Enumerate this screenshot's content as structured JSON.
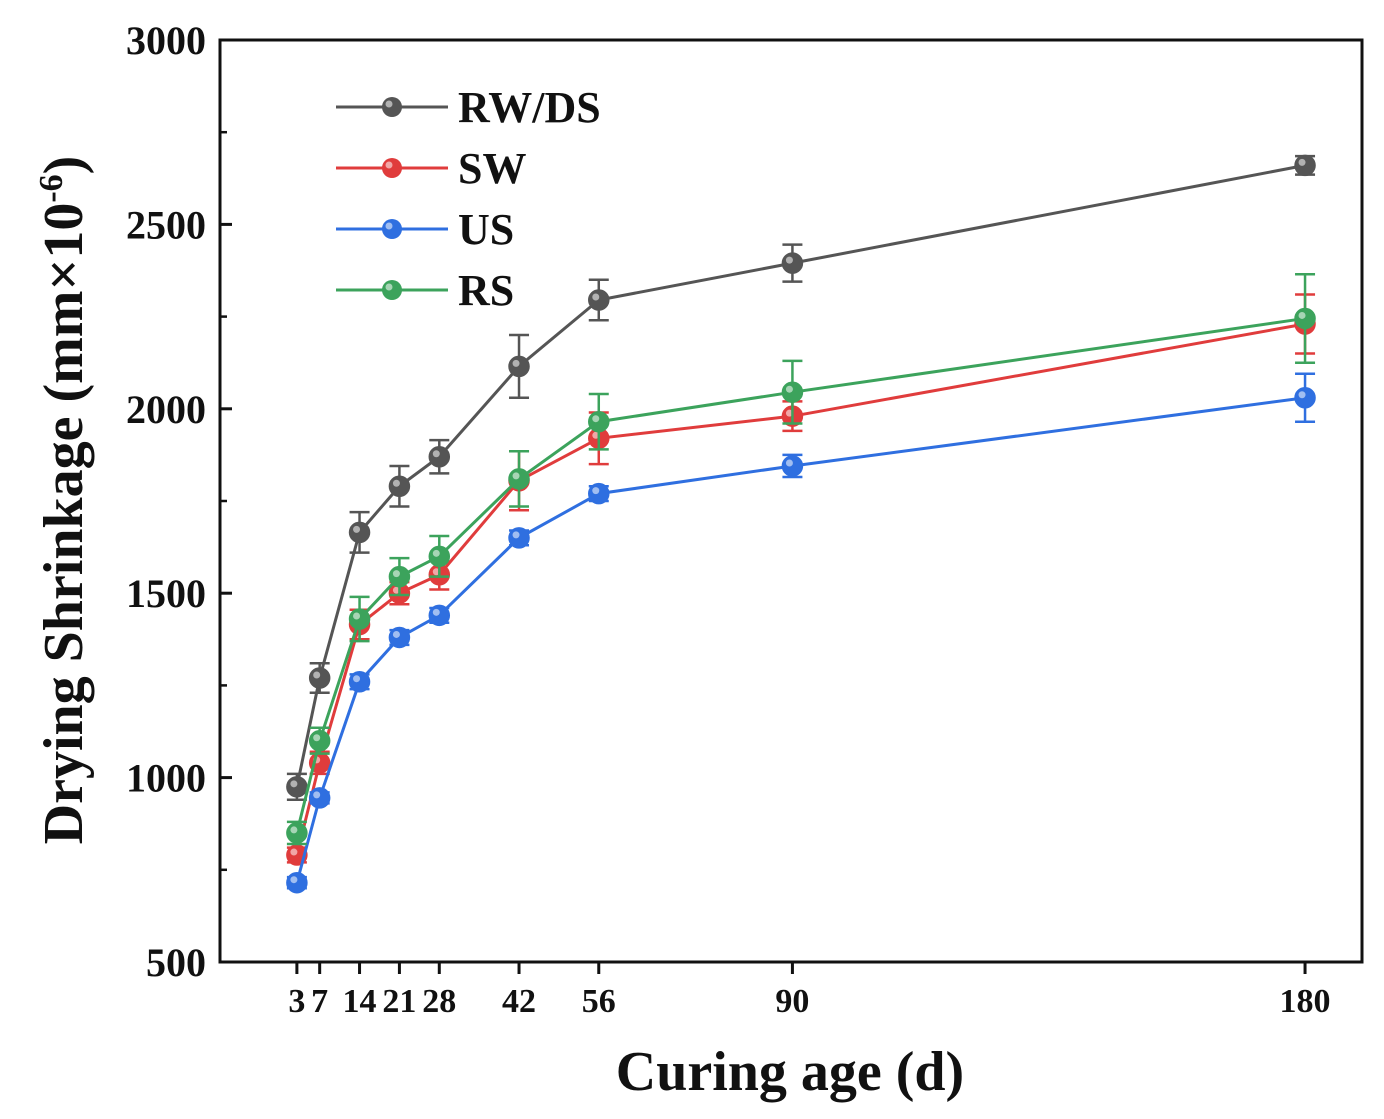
{
  "chart_data": {
    "type": "line",
    "title": "",
    "xlabel": "Curing age (d)",
    "ylabel_main": "Drying Shrinkage (mm×10",
    "ylabel_exp": "-6",
    "ylabel_close": ")",
    "x": [
      3,
      7,
      14,
      21,
      28,
      42,
      56,
      90,
      180
    ],
    "x_tick_labels": [
      "3",
      "7",
      "14",
      "21",
      "28",
      "42",
      "56",
      "90",
      "180"
    ],
    "y_ticks": [
      500,
      1000,
      1500,
      2000,
      2500,
      3000
    ],
    "y_tick_labels": [
      "500",
      "1000",
      "1500",
      "2000",
      "2500",
      "3000"
    ],
    "xlim": [
      -10.5,
      190
    ],
    "ylim": [
      500,
      3000
    ],
    "legend_position": "top-left",
    "series": [
      {
        "name": "RW/DS",
        "color": "#555555",
        "values": [
          975,
          1270,
          1665,
          1790,
          1870,
          2115,
          2295,
          2395,
          2660
        ],
        "errors": [
          35,
          40,
          55,
          55,
          45,
          85,
          55,
          50,
          25
        ]
      },
      {
        "name": "SW",
        "color": "#e03c3c",
        "values": [
          790,
          1040,
          1415,
          1500,
          1550,
          1805,
          1920,
          1980,
          2230
        ],
        "errors": [
          20,
          30,
          40,
          30,
          40,
          80,
          70,
          40,
          80
        ]
      },
      {
        "name": "US",
        "color": "#2f6fe0",
        "values": [
          715,
          945,
          1260,
          1380,
          1440,
          1650,
          1770,
          1845,
          2030
        ],
        "errors": [
          15,
          15,
          20,
          20,
          20,
          20,
          20,
          30,
          65
        ]
      },
      {
        "name": "RS",
        "color": "#3ca35c",
        "values": [
          850,
          1100,
          1430,
          1545,
          1600,
          1810,
          1965,
          2045,
          2245
        ],
        "errors": [
          30,
          35,
          60,
          50,
          55,
          75,
          75,
          85,
          120
        ]
      }
    ]
  }
}
